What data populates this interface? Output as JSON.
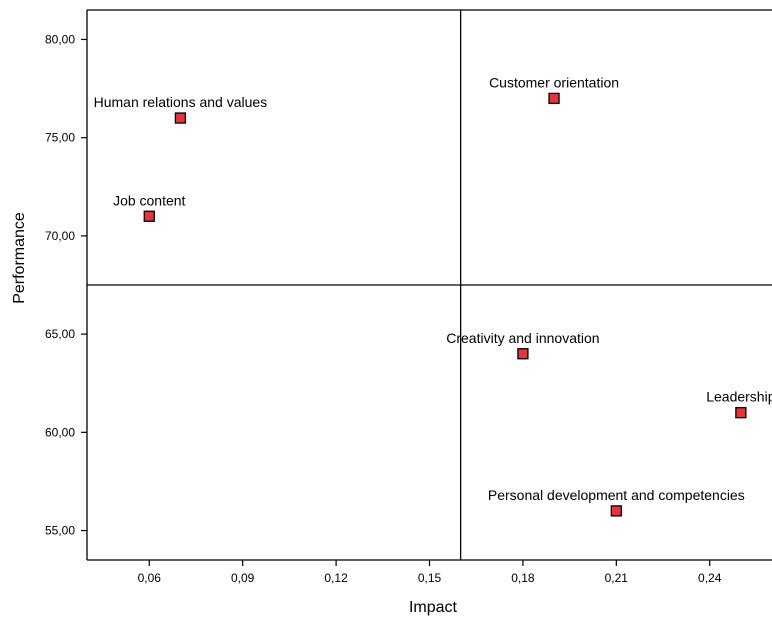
{
  "chart_data": {
    "type": "scatter",
    "title": "",
    "xlabel": "Impact",
    "ylabel": "Performance",
    "xlim": [
      0.04,
      0.26
    ],
    "ylim": [
      53.5,
      81.5
    ],
    "x_ticks": [
      0.06,
      0.09,
      0.12,
      0.15,
      0.18,
      0.21,
      0.24
    ],
    "x_tick_labels": [
      "0,06",
      "0,09",
      "0,12",
      "0,15",
      "0,18",
      "0,21",
      "0,24"
    ],
    "y_ticks": [
      55,
      60,
      65,
      70,
      75,
      80
    ],
    "y_tick_labels": [
      "55,00",
      "60,00",
      "65,00",
      "70,00",
      "75,00",
      "80,00"
    ],
    "reference_lines": {
      "x": 0.16,
      "y": 67.5
    },
    "grid": false,
    "marker_color": "#e8323c",
    "points": [
      {
        "label": "Human relations and values",
        "x": 0.07,
        "y": 76
      },
      {
        "label": "Job content",
        "x": 0.06,
        "y": 71
      },
      {
        "label": "Customer orientation",
        "x": 0.19,
        "y": 77
      },
      {
        "label": "Creativity and innovation",
        "x": 0.18,
        "y": 64
      },
      {
        "label": "Leadership",
        "x": 0.25,
        "y": 61
      },
      {
        "label": "Personal development and competencies",
        "x": 0.21,
        "y": 56
      }
    ]
  }
}
